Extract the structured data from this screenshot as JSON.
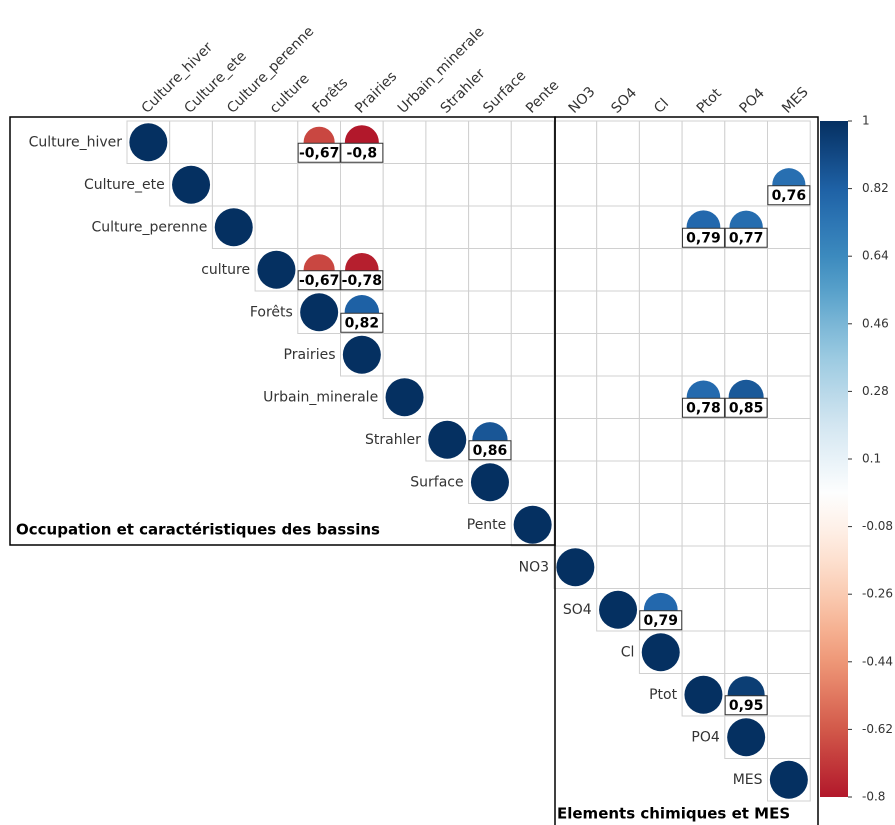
{
  "chart_data": {
    "type": "corrplot",
    "variables": [
      "Culture_hiver",
      "Culture_ete",
      "Culture_perenne",
      "culture",
      "Forêts",
      "Prairies",
      "Urbain_minerale",
      "Strahler",
      "Surface",
      "Pente",
      "NO3",
      "SO4",
      "Cl",
      "Ptot",
      "PO4",
      "MES"
    ],
    "values": [
      [
        1,
        null,
        null,
        null,
        -0.67,
        -0.8,
        null,
        null,
        null,
        null,
        null,
        null,
        null,
        null,
        null,
        null
      ],
      [
        null,
        1,
        null,
        null,
        null,
        null,
        null,
        null,
        null,
        null,
        null,
        null,
        null,
        null,
        null,
        0.76
      ],
      [
        null,
        null,
        1,
        null,
        null,
        null,
        null,
        null,
        null,
        null,
        null,
        null,
        null,
        0.79,
        0.77,
        null
      ],
      [
        null,
        null,
        null,
        1,
        -0.67,
        -0.78,
        null,
        null,
        null,
        null,
        null,
        null,
        null,
        null,
        null,
        null
      ],
      [
        null,
        null,
        null,
        null,
        1,
        0.82,
        null,
        null,
        null,
        null,
        null,
        null,
        null,
        null,
        null,
        null
      ],
      [
        null,
        null,
        null,
        null,
        null,
        1,
        null,
        null,
        null,
        null,
        null,
        null,
        null,
        null,
        null,
        null
      ],
      [
        null,
        null,
        null,
        null,
        null,
        null,
        1,
        null,
        null,
        null,
        null,
        null,
        null,
        0.78,
        0.85,
        null
      ],
      [
        null,
        null,
        null,
        null,
        null,
        null,
        null,
        1,
        0.86,
        null,
        null,
        null,
        null,
        null,
        null,
        null
      ],
      [
        null,
        null,
        null,
        null,
        null,
        null,
        null,
        null,
        1,
        null,
        null,
        null,
        null,
        null,
        null,
        null
      ],
      [
        null,
        null,
        null,
        null,
        null,
        null,
        null,
        null,
        null,
        1,
        null,
        null,
        null,
        null,
        null,
        null
      ],
      [
        null,
        null,
        null,
        null,
        null,
        null,
        null,
        null,
        null,
        null,
        1,
        null,
        null,
        null,
        null,
        null
      ],
      [
        null,
        null,
        null,
        null,
        null,
        null,
        null,
        null,
        null,
        null,
        null,
        1,
        0.79,
        null,
        null,
        null
      ],
      [
        null,
        null,
        null,
        null,
        null,
        null,
        null,
        null,
        null,
        null,
        null,
        null,
        1,
        null,
        null,
        null
      ],
      [
        null,
        null,
        null,
        null,
        null,
        null,
        null,
        null,
        null,
        null,
        null,
        null,
        null,
        1,
        0.95,
        null
      ],
      [
        null,
        null,
        null,
        null,
        null,
        null,
        null,
        null,
        null,
        null,
        null,
        null,
        null,
        null,
        1,
        null
      ],
      [
        null,
        null,
        null,
        null,
        null,
        null,
        null,
        null,
        null,
        null,
        null,
        null,
        null,
        null,
        null,
        1
      ]
    ],
    "value_labels": [
      [
        null,
        null,
        null,
        null,
        "-0,67",
        "-0,8",
        null,
        null,
        null,
        null,
        null,
        null,
        null,
        null,
        null,
        null
      ],
      [
        null,
        null,
        null,
        null,
        null,
        null,
        null,
        null,
        null,
        null,
        null,
        null,
        null,
        null,
        null,
        "0,76"
      ],
      [
        null,
        null,
        null,
        null,
        null,
        null,
        null,
        null,
        null,
        null,
        null,
        null,
        null,
        "0,79",
        "0,77",
        null
      ],
      [
        null,
        null,
        null,
        null,
        "-0,67",
        "-0,78",
        null,
        null,
        null,
        null,
        null,
        null,
        null,
        null,
        null,
        null
      ],
      [
        null,
        null,
        null,
        null,
        null,
        "0,82",
        null,
        null,
        null,
        null,
        null,
        null,
        null,
        null,
        null,
        null
      ],
      [
        null,
        null,
        null,
        null,
        null,
        null,
        null,
        null,
        null,
        null,
        null,
        null,
        null,
        null,
        null,
        null
      ],
      [
        null,
        null,
        null,
        null,
        null,
        null,
        null,
        null,
        null,
        null,
        null,
        null,
        null,
        "0,78",
        "0,85",
        null
      ],
      [
        null,
        null,
        null,
        null,
        null,
        null,
        null,
        null,
        "0,86",
        null,
        null,
        null,
        null,
        null,
        null,
        null
      ],
      [
        null,
        null,
        null,
        null,
        null,
        null,
        null,
        null,
        null,
        null,
        null,
        null,
        null,
        null,
        null,
        null
      ],
      [
        null,
        null,
        null,
        null,
        null,
        null,
        null,
        null,
        null,
        null,
        null,
        null,
        null,
        null,
        null,
        null
      ],
      [
        null,
        null,
        null,
        null,
        null,
        null,
        null,
        null,
        null,
        null,
        null,
        null,
        null,
        null,
        null,
        null
      ],
      [
        null,
        null,
        null,
        null,
        null,
        null,
        null,
        null,
        null,
        null,
        null,
        null,
        "0,79",
        null,
        null,
        null
      ],
      [
        null,
        null,
        null,
        null,
        null,
        null,
        null,
        null,
        null,
        null,
        null,
        null,
        null,
        null,
        null,
        null
      ],
      [
        null,
        null,
        null,
        null,
        null,
        null,
        null,
        null,
        null,
        null,
        null,
        null,
        null,
        null,
        "0,95",
        null
      ],
      [
        null,
        null,
        null,
        null,
        null,
        null,
        null,
        null,
        null,
        null,
        null,
        null,
        null,
        null,
        null,
        null
      ],
      [
        null,
        null,
        null,
        null,
        null,
        null,
        null,
        null,
        null,
        null,
        null,
        null,
        null,
        null,
        null,
        null
      ]
    ],
    "colors": [
      "#67001F",
      "#B2182B",
      "#D6604D",
      "#F4A582",
      "#FDDBC7",
      "#FFFFFF",
      "#D1E5F0",
      "#92C5DE",
      "#4393C3",
      "#2166AC",
      "#053061"
    ],
    "color_range": [
      -1,
      1
    ],
    "clim": [
      -0.8,
      1
    ],
    "cticks": [
      1,
      0.82,
      0.64,
      0.46,
      0.28,
      0.1,
      -0.08,
      -0.26,
      -0.44,
      -0.62,
      -0.8
    ],
    "groups": [
      "Occupation et caractéristiques des bassins",
      "Elements chimiques et MES"
    ]
  }
}
